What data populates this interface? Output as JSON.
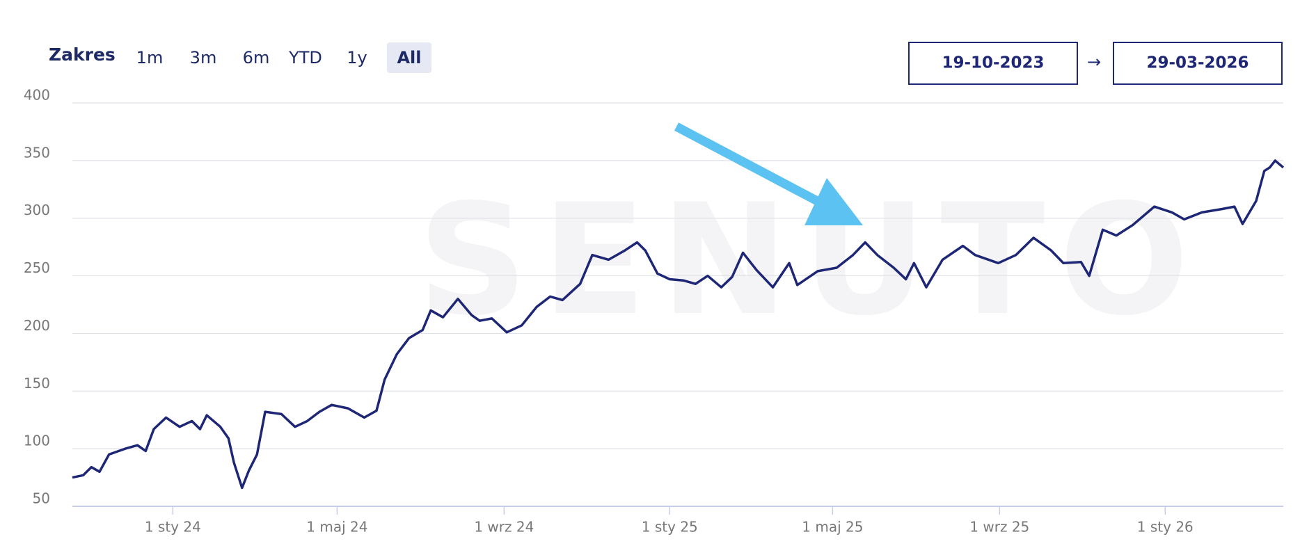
{
  "controls": {
    "label": "Zakres",
    "ranges": [
      "1m",
      "3m",
      "6m",
      "YTD",
      "1y",
      "All"
    ],
    "active": 5
  },
  "date_range": {
    "from": "19-10-2023",
    "separator": "→",
    "to": "29-03-2026"
  },
  "chart_data": {
    "type": "line",
    "watermark": "SENUTO",
    "color": "#1e2775",
    "x": [
      "2023-10-19",
      "2023-10-27",
      "2023-11-02",
      "2023-11-08",
      "2023-11-15",
      "2023-11-27",
      "2023-12-06",
      "2023-12-12",
      "2023-12-18",
      "2023-12-27",
      "2024-01-06",
      "2024-01-15",
      "2024-01-21",
      "2024-01-26",
      "2024-02-05",
      "2024-02-11",
      "2024-02-15",
      "2024-02-21",
      "2024-02-26",
      "2024-03-03",
      "2024-03-09",
      "2024-03-21",
      "2024-03-31",
      "2024-04-09",
      "2024-04-18",
      "2024-04-27",
      "2024-05-09",
      "2024-05-21",
      "2024-05-30",
      "2024-06-05",
      "2024-06-14",
      "2024-06-23",
      "2024-07-03",
      "2024-07-09",
      "2024-07-18",
      "2024-07-29",
      "2024-08-08",
      "2024-08-14",
      "2024-08-23",
      "2024-09-03",
      "2024-09-14",
      "2024-09-25",
      "2024-10-05",
      "2024-10-14",
      "2024-10-27",
      "2024-11-05",
      "2024-11-17",
      "2024-11-29",
      "2024-12-08",
      "2024-12-14",
      "2024-12-23",
      "2025-01-01",
      "2025-01-11",
      "2025-01-20",
      "2025-01-29",
      "2025-02-08",
      "2025-02-16",
      "2025-02-24",
      "2025-03-06",
      "2025-03-18",
      "2025-03-30",
      "2025-04-05",
      "2025-04-20",
      "2025-05-04",
      "2025-05-16",
      "2025-05-25",
      "2025-06-03",
      "2025-06-15",
      "2025-06-24",
      "2025-06-30",
      "2025-07-09",
      "2025-07-21",
      "2025-08-05",
      "2025-08-14",
      "2025-08-31",
      "2025-09-13",
      "2025-09-26",
      "2025-10-09",
      "2025-10-18",
      "2025-10-31",
      "2025-11-06",
      "2025-11-16",
      "2025-11-26",
      "2025-12-08",
      "2025-12-24",
      "2026-01-06",
      "2026-01-15",
      "2026-01-28",
      "2026-02-12",
      "2026-02-21",
      "2026-02-27",
      "2026-03-09",
      "2026-03-15",
      "2026-03-19",
      "2026-03-23",
      "2026-03-29"
    ],
    "values": [
      75,
      77,
      84,
      80,
      95,
      100,
      103,
      98,
      117,
      127,
      119,
      124,
      117,
      129,
      119,
      109,
      88,
      66,
      81,
      95,
      132,
      130,
      119,
      124,
      132,
      138,
      135,
      127,
      133,
      160,
      182,
      196,
      203,
      220,
      214,
      230,
      216,
      211,
      213,
      201,
      207,
      223,
      232,
      229,
      243,
      268,
      264,
      272,
      279,
      272,
      252,
      247,
      246,
      243,
      250,
      240,
      249,
      270,
      255,
      240,
      261,
      242,
      254,
      257,
      268,
      279,
      268,
      257,
      247,
      261,
      240,
      264,
      276,
      268,
      261,
      268,
      283,
      272,
      261,
      262,
      250,
      290,
      285,
      294,
      310,
      305,
      299,
      305,
      308,
      310,
      295,
      315,
      341,
      344,
      350,
      344
    ],
    "xlim": [
      "2023-10-19",
      "2026-03-29"
    ],
    "xticks": [
      {
        "value": "2024-01-01",
        "label": "1 sty 24"
      },
      {
        "value": "2024-05-01",
        "label": "1 maj 24"
      },
      {
        "value": "2024-09-01",
        "label": "1 wrz 24"
      },
      {
        "value": "2025-01-01",
        "label": "1 sty 25"
      },
      {
        "value": "2025-05-01",
        "label": "1 maj 25"
      },
      {
        "value": "2025-09-01",
        "label": "1 wrz 25"
      },
      {
        "value": "2026-01-01",
        "label": "1 sty 26"
      }
    ],
    "ylim": [
      50,
      400
    ],
    "yticks": [
      50,
      100,
      150,
      200,
      250,
      300,
      350,
      400
    ],
    "grid": true
  }
}
